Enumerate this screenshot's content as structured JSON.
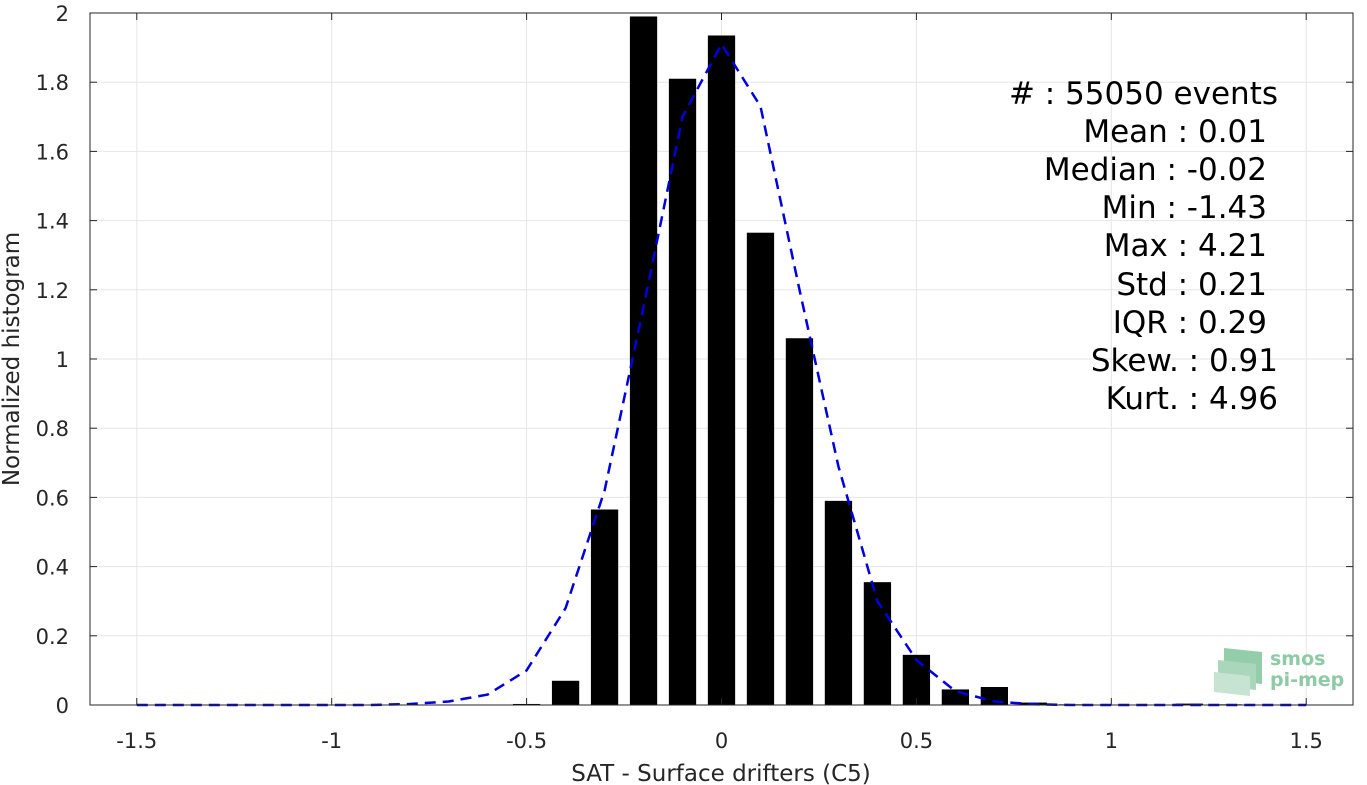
{
  "chart_data": {
    "type": "bar",
    "xlabel": "SAT - Surface drifters (C5)",
    "ylabel": "Normalized histogram",
    "xlim": [
      -1.62,
      1.62
    ],
    "ylim": [
      0,
      2
    ],
    "xticks": [
      -1.5,
      -1,
      -0.5,
      0,
      0.5,
      1,
      1.5
    ],
    "xtick_labels": [
      "-1.5",
      "-1",
      "-0.5",
      "0",
      "0.5",
      "1",
      "1.5"
    ],
    "yticks": [
      0,
      0.2,
      0.4,
      0.6,
      0.8,
      1,
      1.2,
      1.4,
      1.6,
      1.8,
      2
    ],
    "ytick_labels": [
      "0",
      "0.2",
      "0.4",
      "0.6",
      "0.8",
      "1",
      "1.2",
      "1.4",
      "1.6",
      "1.8",
      "2"
    ],
    "grid": true,
    "bar_width": 0.07,
    "bar_color": "#000000",
    "bars": {
      "x": [
        -0.6,
        -0.5,
        -0.4,
        -0.3,
        -0.2,
        -0.1,
        0.0,
        0.1,
        0.2,
        0.3,
        0.4,
        0.5,
        0.6,
        0.7,
        0.8,
        0.9,
        1.0,
        1.1,
        1.2,
        1.3,
        1.4,
        1.5
      ],
      "y": [
        0.001,
        0.003,
        0.07,
        0.565,
        1.99,
        1.81,
        1.935,
        1.365,
        1.06,
        0.59,
        0.355,
        0.145,
        0.045,
        0.052,
        0.007,
        0.002,
        0.001,
        0.001,
        0.004,
        0.002,
        0.001,
        0.001
      ]
    },
    "fit_curve": {
      "style": "dashed",
      "color": "#0000dd",
      "x": [
        -1.5,
        -1.4,
        -1.3,
        -1.2,
        -1.1,
        -1.0,
        -0.9,
        -0.8,
        -0.7,
        -0.6,
        -0.5,
        -0.4,
        -0.3,
        -0.2,
        -0.1,
        0.0,
        0.1,
        0.2,
        0.3,
        0.4,
        0.5,
        0.6,
        0.7,
        0.8,
        0.9,
        1.0,
        1.1,
        1.2,
        1.3,
        1.4,
        1.5
      ],
      "y": [
        0.0,
        0.0,
        0.0,
        0.0,
        0.0,
        0.0,
        0.0,
        0.003,
        0.01,
        0.03,
        0.1,
        0.28,
        0.62,
        1.15,
        1.7,
        1.91,
        1.73,
        1.2,
        0.69,
        0.3,
        0.13,
        0.04,
        0.01,
        0.002,
        0.0,
        0.0,
        0.0,
        0.0,
        0.0,
        0.0,
        0.0
      ]
    },
    "stats": [
      "#  : 55050 events",
      "Mean : 0.01",
      "Median : -0.02",
      "Min : -1.43",
      "Max : 4.21",
      "Std : 0.21",
      "IQR : 0.29",
      "Skew. : 0.91",
      "Kurt. : 4.96"
    ]
  },
  "logo": {
    "line1": "smos",
    "line2": "pi-mep",
    "color": "#8ecaa6"
  }
}
